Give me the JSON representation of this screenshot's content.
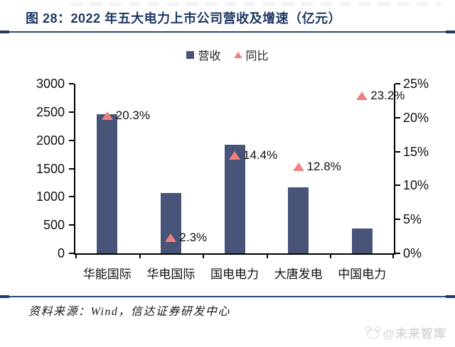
{
  "header": {
    "title": "图 28：2022 年五大电力上市公司营收及增速（亿元）"
  },
  "legend": [
    {
      "label": "营收",
      "marker": "square",
      "color": "#485478"
    },
    {
      "label": "同比",
      "marker": "triangle",
      "color": "#F0807E"
    }
  ],
  "chart_data": {
    "type": "bar",
    "title": "2022 年五大电力上市公司营收及增速（亿元）",
    "categories": [
      "华能国际",
      "华电国际",
      "国电电力",
      "大唐发电",
      "中国电力"
    ],
    "series": [
      {
        "name": "营收",
        "type": "bar",
        "axis": "left",
        "color": "#485478",
        "values": [
          2467,
          1068,
          1924,
          1173,
          437
        ]
      },
      {
        "name": "同比",
        "type": "point-triangle",
        "axis": "right",
        "color": "#F0807E",
        "values_pct": [
          20.3,
          2.3,
          14.4,
          12.8,
          23.2
        ],
        "labels": [
          "20.3%",
          "2.3%",
          "14.4%",
          "12.8%",
          "23.2%"
        ]
      }
    ],
    "left_axis": {
      "min": 0,
      "max": 3000,
      "step": 500,
      "ticks": [
        "0",
        "500",
        "1000",
        "1500",
        "2000",
        "2500",
        "3000"
      ]
    },
    "right_axis": {
      "min": 0,
      "max": 25,
      "step": 5,
      "ticks": [
        "0%",
        "5%",
        "10%",
        "15%",
        "20%",
        "25%"
      ]
    },
    "grid": false,
    "legend_position": "top-center"
  },
  "footer": {
    "source": "资料来源：Wind，信达证券研发中心"
  },
  "watermark": {
    "text": "@未来智库"
  },
  "colors": {
    "title": "#1F3864",
    "bar": "#485478",
    "triangle": "#F0807E",
    "rule": "#2c4a78",
    "axis": "#000000",
    "watermark": "#d9d9d9"
  }
}
